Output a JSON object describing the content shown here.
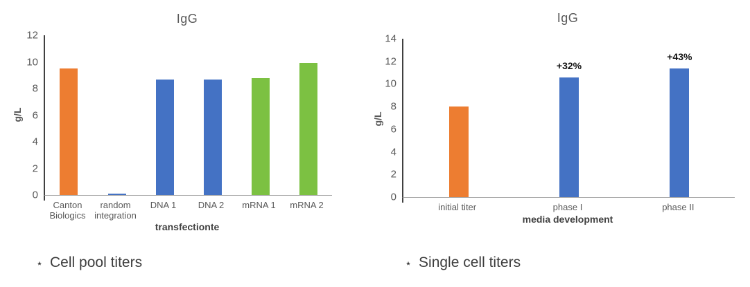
{
  "chart_data": [
    {
      "type": "bar",
      "title": "IgG",
      "xlabel": "transfectionte",
      "ylabel": "g/L",
      "categories": [
        "Canton Biologics",
        "random integration",
        "DNA 1",
        "DNA 2",
        "mRNA 1",
        "mRNA 2"
      ],
      "values": [
        9.5,
        0.1,
        8.7,
        8.7,
        8.8,
        9.9
      ],
      "bar_colors": [
        "#ED7D31",
        "#4472C4",
        "#4472C4",
        "#4472C4",
        "#7CC142",
        "#7CC142"
      ],
      "annotations": [
        "",
        "",
        "",
        "",
        "",
        ""
      ],
      "ylim": [
        0,
        12
      ],
      "ytick_step": 2,
      "grid": false,
      "legend": "none"
    },
    {
      "type": "bar",
      "title": "IgG",
      "xlabel": "media development",
      "ylabel": "g/L",
      "categories": [
        "initial titer",
        "phase I",
        "phase II"
      ],
      "values": [
        8,
        10.6,
        11.4
      ],
      "bar_colors": [
        "#ED7D31",
        "#4472C4",
        "#4472C4"
      ],
      "annotations": [
        "",
        "+32%",
        "+43%"
      ],
      "ylim": [
        0,
        14
      ],
      "ytick_step": 2,
      "grid": false,
      "legend": "none"
    }
  ],
  "captions": [
    {
      "bullet": "⋆",
      "text": "Cell pool titers"
    },
    {
      "bullet": "⋆",
      "text": "Single cell titers"
    }
  ],
  "colors": {
    "orange": "#ED7D31",
    "blue": "#4472C4",
    "green": "#7CC142",
    "axis_text": "#595959",
    "y_axis_line": "#404040",
    "x_axis_line": "#A6A6A6",
    "annotation_text": "#111111"
  }
}
